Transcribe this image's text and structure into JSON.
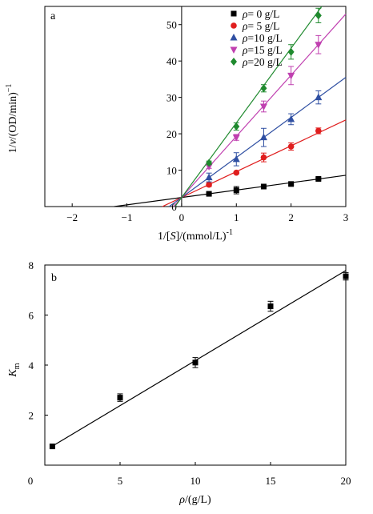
{
  "chart_data": [
    {
      "panel": "a",
      "type": "scatter",
      "xlabel": "1/[S]/(mmol/L)-1",
      "ylabel": "1/v/(OD/min)-1",
      "xlim": [
        -2.5,
        3
      ],
      "ylim": [
        0,
        55
      ],
      "xticks": [
        -2,
        -1,
        0,
        1,
        2,
        3
      ],
      "yticks": [
        0,
        10,
        20,
        30,
        40,
        50
      ],
      "x": [
        0.5,
        1.0,
        1.5,
        2.0,
        2.5
      ],
      "legend_position": "top-right",
      "series": [
        {
          "name": "ρ=  0 g/L",
          "marker": "square",
          "color": "#000000",
          "values": [
            3.5,
            4.5,
            5.5,
            6.2,
            7.6
          ],
          "errors": [
            0.3,
            1.0,
            0.3,
            0.3,
            0.3
          ],
          "fit": {
            "slope": 2.03,
            "intercept": 2.5
          }
        },
        {
          "name": "ρ=  5 g/L",
          "marker": "circle",
          "color": "#e01e1e",
          "values": [
            6.0,
            9.3,
            13.5,
            16.5,
            20.8
          ],
          "errors": [
            0.5,
            0.3,
            1.2,
            1.0,
            0.8
          ],
          "fit": {
            "slope": 7.1,
            "intercept": 2.5
          }
        },
        {
          "name": "ρ=10 g/L",
          "marker": "triangle-up",
          "color": "#2f4fa2",
          "values": [
            8.0,
            13.0,
            19.0,
            24.0,
            30.0
          ],
          "errors": [
            1.2,
            1.8,
            2.5,
            1.5,
            1.8
          ],
          "fit": {
            "slope": 11.0,
            "intercept": 2.5
          }
        },
        {
          "name": "ρ=15 g/L",
          "marker": "triangle-down",
          "color": "#c040b0",
          "values": [
            11.0,
            19.0,
            27.5,
            36.0,
            44.5
          ],
          "errors": [
            0.5,
            0.8,
            1.5,
            2.5,
            2.5
          ],
          "fit": {
            "slope": 16.8,
            "intercept": 2.5
          }
        },
        {
          "name": "ρ=20 g/L",
          "marker": "diamond",
          "color": "#1f8a2e",
          "values": [
            12.0,
            22.0,
            32.5,
            42.5,
            52.5
          ],
          "errors": [
            0.5,
            1.0,
            1.0,
            2.0,
            2.0
          ],
          "fit": {
            "slope": 20.5,
            "intercept": 2.5
          }
        }
      ]
    },
    {
      "panel": "b",
      "type": "scatter",
      "xlabel": "ρ/(g/L)",
      "ylabel": "Km",
      "xlim": [
        0,
        20
      ],
      "ylim": [
        0,
        8
      ],
      "xticks": [
        0,
        5,
        10,
        15,
        20
      ],
      "yticks": [
        2,
        4,
        6,
        8
      ],
      "series": [
        {
          "name": "",
          "marker": "square",
          "color": "#000000",
          "x": [
            0.5,
            5,
            10,
            15,
            20
          ],
          "values": [
            0.75,
            2.7,
            4.1,
            6.35,
            7.55
          ],
          "errors": [
            0,
            0.15,
            0.2,
            0.2,
            0.15
          ],
          "fit": {
            "slope": 0.36,
            "intercept": 0.58
          }
        }
      ]
    }
  ],
  "panel_a": {
    "letter": "a",
    "xlabel_main": "1/[",
    "xlabel_var": "S",
    "xlabel_rest": "]/(mmol/L)",
    "xlabel_sup": "-1",
    "ylabel_main": "1/",
    "ylabel_var": "v",
    "ylabel_rest": "/(OD/min)",
    "ylabel_sup": "−1",
    "legend_prefix": "ρ",
    "legend_values": [
      "=  0 g/L",
      "=  5 g/L",
      "=10 g/L",
      "=15 g/L",
      "=20 g/L"
    ]
  },
  "panel_b": {
    "letter": "b",
    "xlabel_var": "ρ",
    "xlabel_rest": "/(g/L)",
    "ylabel_var": "K",
    "ylabel_sub": "m"
  }
}
